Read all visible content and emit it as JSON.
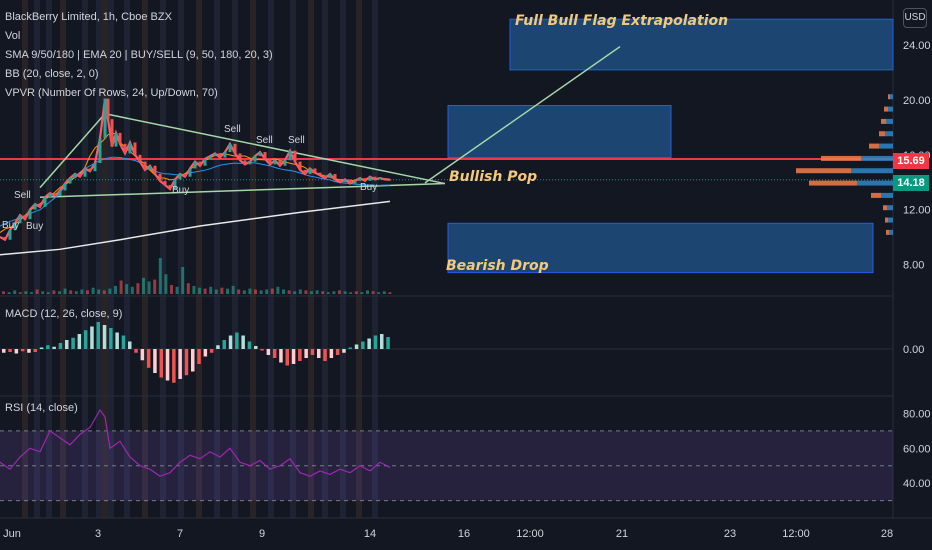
{
  "legend": {
    "symbol": "BlackBerry Limited, 1h, Cboe BZX",
    "vol": "Vol",
    "sma": "SMA 9/50/180 | EMA 20 | BUY/SELL (9, 50, 180, 20, 3)",
    "bb": "BB (20, close, 2, 0)",
    "vpvr": "VPVR (Number Of Rows, 24, Up/Down, 70)"
  },
  "macd_label": "MACD (12, 26, close, 9)",
  "rsi_label": "RSI (14, close)",
  "currency": "USD",
  "annotations": {
    "full_bull": "Full Bull Flag Extrapolation",
    "bullish_pop": "Bullish Pop",
    "bearish_drop": "Bearish Drop"
  },
  "signals": [
    "Sell",
    "Buy",
    "Buy",
    "Sell",
    "Sell",
    "Sell",
    "Buy",
    "Buy"
  ],
  "price_tags": {
    "red": {
      "value": "15.69",
      "color": "#f23645"
    },
    "green": {
      "value": "14.18",
      "color": "#089981"
    }
  },
  "colors": {
    "up": "#26a69a",
    "down": "#ef5350",
    "box_fill": "#1e4a7a",
    "box_border": "#2962ff",
    "trend": "#a5d6a7",
    "resistance": "#f23645"
  },
  "chart_data": {
    "type": "line",
    "price_axis": {
      "ticks": [
        24,
        20,
        16,
        12,
        8
      ],
      "tick_labels": [
        "24.00",
        "20.00",
        "16.00",
        "12.00",
        "8.00"
      ],
      "ylim": [
        5.4,
        27.3
      ]
    },
    "macd_axis": {
      "ticks": [
        0
      ],
      "tick_labels": [
        "0.00"
      ]
    },
    "rsi_axis": {
      "ticks": [
        80,
        60,
        40
      ],
      "tick_labels": [
        "80.00",
        "60.00",
        "40.00"
      ],
      "bands": [
        30,
        50,
        70
      ]
    },
    "x_ticks": [
      "Jun",
      "3",
      "7",
      "9",
      "14",
      "16",
      "12:00",
      "21",
      "23",
      "12:00",
      "28"
    ],
    "resistance": 15.69,
    "last_price": 14.18,
    "boxes": [
      {
        "name": "Full Bull Flag Extrapolation",
        "top": 25.9,
        "bottom": 22.2
      },
      {
        "name": "Bullish Pop",
        "top": 19.6,
        "bottom": 15.8
      },
      {
        "name": "Bearish Drop",
        "top": 11.0,
        "bottom": 7.4
      }
    ],
    "price_path": [
      [
        0,
        10.0
      ],
      [
        5,
        9.8
      ],
      [
        10,
        10.5
      ],
      [
        15,
        11.0
      ],
      [
        20,
        11.6
      ],
      [
        25,
        11.3
      ],
      [
        30,
        12.0
      ],
      [
        35,
        12.4
      ],
      [
        40,
        12.2
      ],
      [
        45,
        12.9
      ],
      [
        50,
        13.2
      ],
      [
        55,
        13.0
      ],
      [
        60,
        13.4
      ],
      [
        65,
        13.9
      ],
      [
        70,
        14.3
      ],
      [
        75,
        14.6
      ],
      [
        80,
        14.4
      ],
      [
        85,
        15.0
      ],
      [
        90,
        14.8
      ],
      [
        95,
        15.4
      ],
      [
        100,
        17.2
      ],
      [
        105,
        20.1
      ],
      [
        108,
        18.6
      ],
      [
        112,
        16.6
      ],
      [
        116,
        17.6
      ],
      [
        120,
        16.8
      ],
      [
        125,
        16.1
      ],
      [
        130,
        16.9
      ],
      [
        135,
        16.0
      ],
      [
        140,
        15.5
      ],
      [
        145,
        14.9
      ],
      [
        150,
        15.2
      ],
      [
        155,
        14.6
      ],
      [
        160,
        14.1
      ],
      [
        165,
        13.8
      ],
      [
        170,
        13.5
      ],
      [
        175,
        14.2
      ],
      [
        180,
        14.6
      ],
      [
        185,
        14.4
      ],
      [
        190,
        15.0
      ],
      [
        195,
        15.5
      ],
      [
        200,
        15.2
      ],
      [
        205,
        15.7
      ],
      [
        210,
        15.9
      ],
      [
        215,
        16.1
      ],
      [
        220,
        15.8
      ],
      [
        225,
        16.2
      ],
      [
        230,
        16.8
      ],
      [
        235,
        16.1
      ],
      [
        240,
        15.6
      ],
      [
        245,
        15.3
      ],
      [
        250,
        15.5
      ],
      [
        255,
        15.9
      ],
      [
        260,
        16.2
      ],
      [
        265,
        15.7
      ],
      [
        270,
        15.3
      ],
      [
        275,
        15.6
      ],
      [
        280,
        15.2
      ],
      [
        285,
        15.6
      ],
      [
        290,
        16.3
      ],
      [
        295,
        15.5
      ],
      [
        300,
        14.9
      ],
      [
        305,
        14.6
      ],
      [
        310,
        15.0
      ],
      [
        315,
        14.7
      ],
      [
        320,
        14.5
      ],
      [
        325,
        14.3
      ],
      [
        330,
        14.6
      ],
      [
        335,
        14.2
      ],
      [
        340,
        14.0
      ],
      [
        345,
        14.2
      ],
      [
        350,
        13.9
      ],
      [
        355,
        14.1
      ],
      [
        360,
        14.3
      ],
      [
        365,
        14.1
      ],
      [
        370,
        14.4
      ],
      [
        375,
        14.2
      ],
      [
        380,
        14.3
      ],
      [
        385,
        14.2
      ],
      [
        390,
        14.18
      ]
    ],
    "upper_trend": [
      [
        40,
        13.6
      ],
      [
        105,
        19.0
      ],
      [
        445,
        13.9
      ]
    ],
    "lower_trend": [
      [
        40,
        12.9
      ],
      [
        445,
        13.9
      ]
    ],
    "support_curve": [
      [
        0,
        8.7
      ],
      [
        60,
        9.1
      ],
      [
        120,
        9.8
      ],
      [
        200,
        10.8
      ],
      [
        300,
        11.8
      ],
      [
        390,
        12.6
      ]
    ],
    "projection": [
      [
        425,
        13.95
      ],
      [
        620,
        23.9
      ]
    ],
    "volume": [
      3,
      2,
      4,
      2,
      3,
      2,
      5,
      3,
      2,
      4,
      3,
      6,
      4,
      3,
      5,
      4,
      7,
      5,
      4,
      6,
      9,
      15,
      11,
      8,
      12,
      18,
      14,
      16,
      40,
      22,
      10,
      8,
      30,
      12,
      9,
      7,
      6,
      8,
      5,
      7,
      6,
      9,
      5,
      4,
      6,
      5,
      4,
      5,
      6,
      8,
      5,
      4,
      3,
      5,
      4,
      3,
      4,
      3,
      2,
      3,
      4,
      3,
      2,
      3,
      2,
      4,
      3,
      2,
      3,
      2
    ],
    "macd_hist": [
      -0.05,
      -0.04,
      -0.06,
      -0.03,
      -0.05,
      -0.04,
      0.02,
      0.05,
      0.03,
      0.08,
      0.12,
      0.15,
      0.2,
      0.25,
      0.3,
      0.36,
      0.32,
      0.28,
      0.22,
      0.18,
      0.1,
      -0.05,
      -0.15,
      -0.25,
      -0.32,
      -0.38,
      -0.42,
      -0.45,
      -0.4,
      -0.35,
      -0.3,
      -0.2,
      -0.1,
      -0.05,
      0.05,
      0.12,
      0.18,
      0.22,
      0.18,
      0.1,
      0.04,
      -0.02,
      -0.08,
      -0.12,
      -0.18,
      -0.22,
      -0.2,
      -0.16,
      -0.12,
      -0.08,
      -0.12,
      -0.16,
      -0.12,
      -0.08,
      -0.05,
      0.02,
      0.06,
      0.1,
      0.14,
      0.18,
      0.2,
      0.16
    ],
    "rsi": [
      [
        0,
        52
      ],
      [
        10,
        48
      ],
      [
        20,
        55
      ],
      [
        30,
        60
      ],
      [
        40,
        58
      ],
      [
        50,
        70
      ],
      [
        60,
        66
      ],
      [
        70,
        62
      ],
      [
        80,
        68
      ],
      [
        90,
        72
      ],
      [
        100,
        82
      ],
      [
        105,
        78
      ],
      [
        110,
        60
      ],
      [
        120,
        64
      ],
      [
        130,
        55
      ],
      [
        140,
        50
      ],
      [
        150,
        48
      ],
      [
        160,
        44
      ],
      [
        170,
        46
      ],
      [
        180,
        52
      ],
      [
        190,
        56
      ],
      [
        200,
        54
      ],
      [
        210,
        58
      ],
      [
        220,
        55
      ],
      [
        230,
        60
      ],
      [
        240,
        52
      ],
      [
        250,
        50
      ],
      [
        260,
        53
      ],
      [
        270,
        48
      ],
      [
        280,
        50
      ],
      [
        290,
        54
      ],
      [
        300,
        46
      ],
      [
        310,
        44
      ],
      [
        320,
        47
      ],
      [
        330,
        45
      ],
      [
        340,
        48
      ],
      [
        350,
        46
      ],
      [
        360,
        50
      ],
      [
        370,
        47
      ],
      [
        380,
        52
      ],
      [
        390,
        49
      ]
    ],
    "vpvr": [
      {
        "price": 20.2,
        "up": 3,
        "down": 2
      },
      {
        "price": 19.3,
        "up": 5,
        "down": 4
      },
      {
        "price": 18.4,
        "up": 7,
        "down": 5
      },
      {
        "price": 17.5,
        "up": 8,
        "down": 6
      },
      {
        "price": 16.6,
        "up": 14,
        "down": 10
      },
      {
        "price": 15.7,
        "up": 32,
        "down": 40
      },
      {
        "price": 14.8,
        "up": 42,
        "down": 55
      },
      {
        "price": 13.9,
        "up": 36,
        "down": 48
      },
      {
        "price": 13.0,
        "up": 12,
        "down": 10
      },
      {
        "price": 12.1,
        "up": 6,
        "down": 4
      },
      {
        "price": 11.2,
        "up": 5,
        "down": 3
      },
      {
        "price": 10.3,
        "up": 4,
        "down": 3
      }
    ]
  }
}
